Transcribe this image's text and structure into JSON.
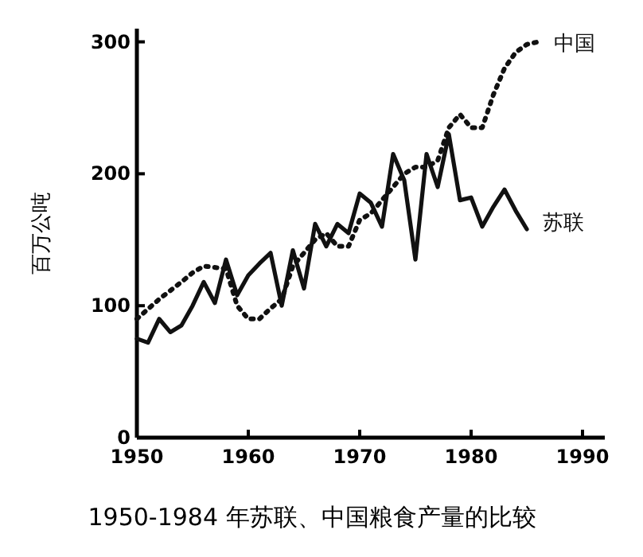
{
  "chart_data": {
    "type": "line",
    "title": "1950-1984 年苏联、中国粮食产量的比较",
    "ylabel": "百万公吨",
    "xlim": [
      1950,
      1992
    ],
    "xticks": [
      1950,
      1960,
      1970,
      1980,
      1990
    ],
    "ylim": [
      0,
      310
    ],
    "yticks": [
      0,
      100,
      200,
      300
    ],
    "grid": false,
    "series": [
      {
        "name": "中国",
        "color": "#111111",
        "line_style": "dotted",
        "x": [
          1950,
          1952,
          1954,
          1955,
          1956,
          1958,
          1959,
          1960,
          1961,
          1962,
          1963,
          1964,
          1965,
          1966,
          1967,
          1968,
          1969,
          1970,
          1971,
          1972,
          1973,
          1974,
          1975,
          1976,
          1977,
          1978,
          1979,
          1980,
          1981,
          1982,
          1983,
          1984,
          1985,
          1986
        ],
        "values": [
          90,
          105,
          118,
          125,
          130,
          128,
          100,
          90,
          90,
          98,
          105,
          130,
          140,
          150,
          155,
          145,
          145,
          165,
          170,
          180,
          190,
          200,
          205,
          205,
          210,
          235,
          245,
          235,
          235,
          260,
          280,
          292,
          298,
          300
        ]
      },
      {
        "name": "苏联",
        "color": "#111111",
        "line_style": "solid",
        "x": [
          1950,
          1951,
          1952,
          1953,
          1954,
          1955,
          1956,
          1957,
          1958,
          1959,
          1960,
          1961,
          1962,
          1963,
          1964,
          1965,
          1966,
          1967,
          1968,
          1969,
          1970,
          1971,
          1972,
          1973,
          1974,
          1975,
          1976,
          1977,
          1978,
          1979,
          1980,
          1981,
          1982,
          1983,
          1984,
          1985
        ],
        "values": [
          75,
          72,
          90,
          80,
          85,
          100,
          118,
          102,
          135,
          108,
          123,
          132,
          140,
          100,
          142,
          113,
          162,
          145,
          162,
          155,
          185,
          178,
          160,
          215,
          195,
          135,
          215,
          190,
          230,
          180,
          182,
          160,
          175,
          188,
          172,
          158
        ]
      }
    ]
  }
}
